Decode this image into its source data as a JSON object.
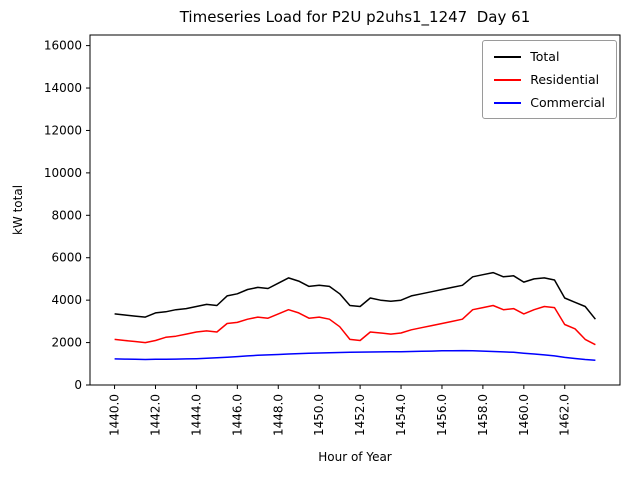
{
  "chart_data": {
    "type": "line",
    "title": "Timeseries Load for P2U p2uhs1_1247  Day 61",
    "xlabel": "Hour of Year",
    "ylabel": "kW total",
    "xlim": [
      1438.8,
      1464.7
    ],
    "ylim": [
      0,
      16500
    ],
    "grid": false,
    "legend_position": "upper right",
    "y_ticks": [
      0,
      2000,
      4000,
      6000,
      8000,
      10000,
      12000,
      14000,
      16000
    ],
    "x_ticks": [
      1440,
      1442,
      1444,
      1446,
      1448,
      1450,
      1452,
      1454,
      1456,
      1458,
      1460,
      1462
    ],
    "x_tick_labels": [
      "1440.0",
      "1442.0",
      "1444.0",
      "1446.0",
      "1448.0",
      "1450.0",
      "1452.0",
      "1454.0",
      "1456.0",
      "1458.0",
      "1460.0",
      "1462.0"
    ],
    "x": [
      1440.0,
      1440.5,
      1441.0,
      1441.5,
      1442.0,
      1442.5,
      1443.0,
      1443.5,
      1444.0,
      1444.5,
      1445.0,
      1445.5,
      1446.0,
      1446.5,
      1447.0,
      1447.5,
      1448.0,
      1448.5,
      1449.0,
      1449.5,
      1450.0,
      1450.5,
      1451.0,
      1451.5,
      1452.0,
      1452.5,
      1453.0,
      1453.5,
      1454.0,
      1454.5,
      1455.0,
      1455.5,
      1456.0,
      1456.5,
      1457.0,
      1457.5,
      1458.0,
      1458.5,
      1459.0,
      1459.5,
      1460.0,
      1460.5,
      1461.0,
      1461.5,
      1462.0,
      1462.5,
      1463.0,
      1463.5
    ],
    "series": [
      {
        "name": "Total",
        "color": "#000000",
        "values": [
          3350,
          3300,
          3250,
          3200,
          3400,
          3450,
          3550,
          3600,
          3700,
          3800,
          3750,
          4200,
          4300,
          4500,
          4600,
          4550,
          4800,
          5050,
          4900,
          4650,
          4700,
          4650,
          4300,
          3750,
          3700,
          4100,
          4000,
          3950,
          4000,
          4200,
          4300,
          4400,
          4500,
          4600,
          4700,
          5100,
          5200,
          5300,
          5100,
          5150,
          4850,
          5000,
          5050,
          4950,
          4100,
          3900,
          3700,
          3100
        ]
      },
      {
        "name": "Residential",
        "color": "#ff0000",
        "values": [
          2150,
          2100,
          2050,
          2000,
          2100,
          2250,
          2300,
          2400,
          2500,
          2550,
          2500,
          2900,
          2950,
          3100,
          3200,
          3150,
          3350,
          3550,
          3400,
          3150,
          3200,
          3100,
          2750,
          2150,
          2100,
          2500,
          2450,
          2400,
          2450,
          2600,
          2700,
          2800,
          2900,
          3000,
          3100,
          3550,
          3650,
          3750,
          3550,
          3600,
          3350,
          3550,
          3700,
          3650,
          2850,
          2650,
          2150,
          1900
        ]
      },
      {
        "name": "Commercial",
        "color": "#0000ff",
        "values": [
          1230,
          1220,
          1210,
          1200,
          1210,
          1215,
          1220,
          1230,
          1240,
          1260,
          1280,
          1310,
          1340,
          1370,
          1400,
          1420,
          1440,
          1460,
          1480,
          1500,
          1510,
          1520,
          1530,
          1540,
          1550,
          1555,
          1560,
          1565,
          1570,
          1580,
          1590,
          1600,
          1610,
          1615,
          1620,
          1610,
          1600,
          1580,
          1560,
          1540,
          1500,
          1460,
          1420,
          1370,
          1300,
          1250,
          1200,
          1170
        ]
      }
    ]
  }
}
